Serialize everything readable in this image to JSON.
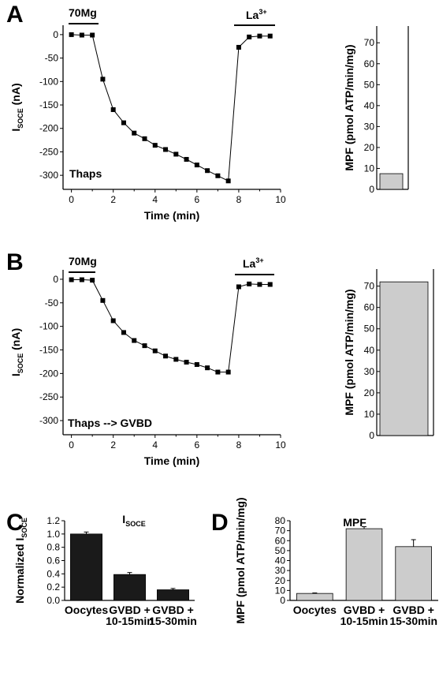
{
  "panels": {
    "A": {
      "letter": "A",
      "bar_left": "70Mg",
      "bar_right": "La",
      "bar_right_sup": "3+",
      "label": "Thaps"
    },
    "B": {
      "letter": "B",
      "bar_left": "70Mg",
      "bar_right": "La",
      "bar_right_sup": "3+",
      "label": "Thaps --> GVBD"
    },
    "C": {
      "letter": "C"
    },
    "D": {
      "letter": "D"
    }
  },
  "colors": {
    "gray_bar": "#cccccc",
    "dark_bar": "#1a1a1a",
    "line": "#000000"
  },
  "chart_data": [
    {
      "id": "A-trace",
      "type": "line",
      "xlabel": "Time (min)",
      "ylabel": "I",
      "ylabel_sub": "SOCE",
      "ylabel_unit": " (nA)",
      "xlim": [
        -0.4,
        10
      ],
      "ylim": [
        -330,
        20
      ],
      "xticks": [
        0,
        2,
        4,
        6,
        8,
        10
      ],
      "yticks": [
        0,
        -50,
        -100,
        -150,
        -200,
        -250,
        -300
      ],
      "x": [
        0,
        0.5,
        1.0,
        1.5,
        2.0,
        2.5,
        3.0,
        3.5,
        4.0,
        4.5,
        5.0,
        5.5,
        6.0,
        6.5,
        7.0,
        7.5,
        8.0,
        8.5,
        9.0,
        9.5
      ],
      "y": [
        0,
        -1,
        -1,
        -95,
        -160,
        -188,
        -210,
        -222,
        -236,
        -245,
        -255,
        -266,
        -278,
        -290,
        -301,
        -312,
        -27,
        -5,
        -3,
        -3
      ]
    },
    {
      "id": "A-mpf",
      "type": "bar",
      "ylabel": "MPF (pmol ATP/min/mg)",
      "ylim": [
        0,
        78
      ],
      "yticks": [
        0,
        10,
        20,
        30,
        40,
        50,
        60,
        70
      ],
      "values": [
        7.5
      ]
    },
    {
      "id": "B-trace",
      "type": "line",
      "xlabel": "Time (min)",
      "ylabel": "I",
      "ylabel_sub": "SOCE",
      "ylabel_unit": " (nA)",
      "xlim": [
        -0.4,
        10
      ],
      "ylim": [
        -330,
        20
      ],
      "xticks": [
        0,
        2,
        4,
        6,
        8,
        10
      ],
      "yticks": [
        0,
        -50,
        -100,
        -150,
        -200,
        -250,
        -300
      ],
      "x": [
        0,
        0.5,
        1.0,
        1.5,
        2.0,
        2.5,
        3.0,
        3.5,
        4.0,
        4.5,
        5.0,
        5.5,
        6.0,
        6.5,
        7.0,
        7.5,
        8.0,
        8.5,
        9.0,
        9.5
      ],
      "y": [
        -1,
        -1,
        -2,
        -45,
        -88,
        -113,
        -130,
        -141,
        -152,
        -163,
        -170,
        -176,
        -181,
        -188,
        -197,
        -197,
        -16,
        -10,
        -11,
        -11
      ]
    },
    {
      "id": "B-mpf",
      "type": "bar",
      "ylabel": "MPF (pmol ATP/min/mg)",
      "ylim": [
        0,
        78
      ],
      "yticks": [
        0,
        10,
        20,
        30,
        40,
        50,
        60,
        70
      ],
      "values": [
        72
      ]
    },
    {
      "id": "C-bars",
      "type": "bar",
      "title": "I",
      "title_sub": "SOCE",
      "ylabel": "Normalized I",
      "ylabel_sub": "SOCE",
      "ylim": [
        0,
        1.2
      ],
      "yticks": [
        0.0,
        0.2,
        0.4,
        0.6,
        0.8,
        1.0,
        1.2
      ],
      "categories": [
        [
          "Oocytes"
        ],
        [
          "GVBD +",
          "10-15min"
        ],
        [
          "GVBD +",
          "15-30min"
        ]
      ],
      "values": [
        1.0,
        0.39,
        0.16
      ],
      "errors": [
        0.03,
        0.03,
        0.02
      ]
    },
    {
      "id": "D-bars",
      "type": "bar",
      "title": "MPF",
      "ylabel": "MPF (pmol ATP/min/mg)",
      "ylim": [
        0,
        80
      ],
      "yticks": [
        0,
        10,
        20,
        30,
        40,
        50,
        60,
        70,
        80
      ],
      "categories": [
        [
          "Oocytes"
        ],
        [
          "GVBD +",
          "10-15min"
        ],
        [
          "GVBD +",
          "15-30min"
        ]
      ],
      "values": [
        7,
        72,
        54
      ],
      "errors": [
        0.5,
        2,
        7
      ]
    }
  ]
}
